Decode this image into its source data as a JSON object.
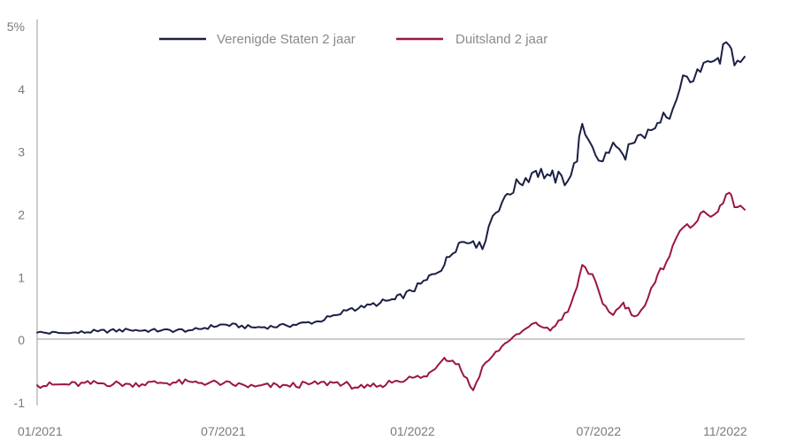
{
  "chart_data": {
    "type": "line",
    "title": "",
    "xlabel": "",
    "ylabel": "",
    "x_ticks": [
      "01/2021",
      "07/2021",
      "01/2022",
      "07/2022",
      "11/2022"
    ],
    "y_ticks": [
      "-1",
      "0",
      "1",
      "2",
      "3",
      "4",
      "5%"
    ],
    "ylim": [
      -1,
      5
    ],
    "grid": false,
    "legend_position": "top",
    "series": [
      {
        "name": "Verenigde Staten 2 jaar",
        "color": "#1b1f45",
        "points": [
          [
            "2021-01-01",
            0.12
          ],
          [
            "2021-02-01",
            0.11
          ],
          [
            "2021-03-01",
            0.14
          ],
          [
            "2021-04-01",
            0.16
          ],
          [
            "2021-05-01",
            0.15
          ],
          [
            "2021-06-01",
            0.16
          ],
          [
            "2021-07-01",
            0.25
          ],
          [
            "2021-08-01",
            0.2
          ],
          [
            "2021-09-01",
            0.23
          ],
          [
            "2021-10-01",
            0.3
          ],
          [
            "2021-10-20",
            0.4
          ],
          [
            "2021-11-01",
            0.5
          ],
          [
            "2021-11-15",
            0.52
          ],
          [
            "2021-12-01",
            0.6
          ],
          [
            "2021-12-15",
            0.65
          ],
          [
            "2022-01-01",
            0.78
          ],
          [
            "2022-01-15",
            0.96
          ],
          [
            "2022-02-01",
            1.2
          ],
          [
            "2022-02-15",
            1.55
          ],
          [
            "2022-03-01",
            1.58
          ],
          [
            "2022-03-10",
            1.45
          ],
          [
            "2022-03-20",
            1.98
          ],
          [
            "2022-04-01",
            2.3
          ],
          [
            "2022-04-15",
            2.5
          ],
          [
            "2022-05-01",
            2.7
          ],
          [
            "2022-05-15",
            2.62
          ],
          [
            "2022-06-01",
            2.54
          ],
          [
            "2022-06-10",
            2.85
          ],
          [
            "2022-06-15",
            3.45
          ],
          [
            "2022-06-25",
            3.08
          ],
          [
            "2022-07-05",
            2.85
          ],
          [
            "2022-07-15",
            3.15
          ],
          [
            "2022-07-25",
            2.95
          ],
          [
            "2022-08-05",
            3.15
          ],
          [
            "2022-08-15",
            3.22
          ],
          [
            "2022-08-25",
            3.38
          ],
          [
            "2022-09-05",
            3.55
          ],
          [
            "2022-09-15",
            3.85
          ],
          [
            "2022-09-25",
            4.2
          ],
          [
            "2022-10-05",
            4.32
          ],
          [
            "2022-10-15",
            4.45
          ],
          [
            "2022-10-25",
            4.5
          ],
          [
            "2022-11-05",
            4.7
          ],
          [
            "2022-11-10",
            4.38
          ],
          [
            "2022-11-20",
            4.52
          ]
        ]
      },
      {
        "name": "Duitsland 2 jaar",
        "color": "#9b1640",
        "points": [
          [
            "2021-01-01",
            -0.72
          ],
          [
            "2021-02-01",
            -0.71
          ],
          [
            "2021-03-01",
            -0.69
          ],
          [
            "2021-04-01",
            -0.7
          ],
          [
            "2021-05-01",
            -0.68
          ],
          [
            "2021-06-01",
            -0.67
          ],
          [
            "2021-07-01",
            -0.69
          ],
          [
            "2021-08-01",
            -0.74
          ],
          [
            "2021-09-01",
            -0.72
          ],
          [
            "2021-10-01",
            -0.7
          ],
          [
            "2021-10-20",
            -0.67
          ],
          [
            "2021-11-01",
            -0.72
          ],
          [
            "2021-11-15",
            -0.76
          ],
          [
            "2021-12-01",
            -0.72
          ],
          [
            "2021-12-15",
            -0.65
          ],
          [
            "2022-01-01",
            -0.6
          ],
          [
            "2022-01-15",
            -0.58
          ],
          [
            "2022-02-01",
            -0.28
          ],
          [
            "2022-02-15",
            -0.38
          ],
          [
            "2022-03-01",
            -0.8
          ],
          [
            "2022-03-10",
            -0.42
          ],
          [
            "2022-03-20",
            -0.25
          ],
          [
            "2022-04-01",
            -0.05
          ],
          [
            "2022-04-15",
            0.1
          ],
          [
            "2022-05-01",
            0.28
          ],
          [
            "2022-05-15",
            0.15
          ],
          [
            "2022-06-01",
            0.45
          ],
          [
            "2022-06-10",
            0.85
          ],
          [
            "2022-06-15",
            1.2
          ],
          [
            "2022-06-25",
            1.05
          ],
          [
            "2022-07-05",
            0.58
          ],
          [
            "2022-07-15",
            0.4
          ],
          [
            "2022-07-25",
            0.6
          ],
          [
            "2022-08-05",
            0.38
          ],
          [
            "2022-08-15",
            0.55
          ],
          [
            "2022-08-25",
            0.92
          ],
          [
            "2022-09-05",
            1.25
          ],
          [
            "2022-09-15",
            1.65
          ],
          [
            "2022-09-25",
            1.85
          ],
          [
            "2022-10-05",
            1.9
          ],
          [
            "2022-10-15",
            2.0
          ],
          [
            "2022-10-25",
            2.05
          ],
          [
            "2022-11-05",
            2.35
          ],
          [
            "2022-11-10",
            2.12
          ],
          [
            "2022-11-20",
            2.08
          ]
        ]
      }
    ]
  }
}
